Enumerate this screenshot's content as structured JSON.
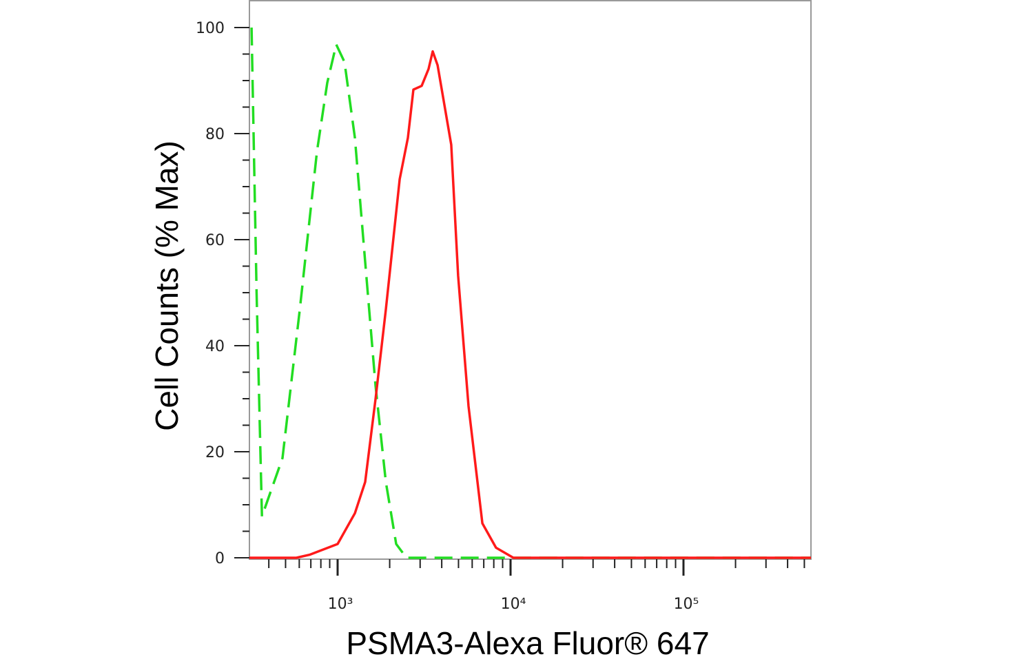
{
  "chart_data": {
    "type": "line",
    "x_label": "PSMA3-Alexa Fluor® 647",
    "y_label": "Cell Counts (% Max)",
    "xscale": "log",
    "xlim": [
      309,
      546000
    ],
    "ylim": [
      0,
      105
    ],
    "xticks": [
      {
        "value": 1000,
        "label": "10³"
      },
      {
        "value": 10000,
        "label": "10⁴"
      },
      {
        "value": 100000,
        "label": "10⁵"
      }
    ],
    "xminorticks": [
      400,
      500,
      600,
      700,
      800,
      900,
      2000,
      3000,
      4000,
      5000,
      6000,
      7000,
      8000,
      9000,
      20000,
      30000,
      40000,
      50000,
      60000,
      70000,
      80000,
      90000,
      200000,
      300000,
      400000,
      500000
    ],
    "yticks": [
      0,
      20,
      40,
      60,
      80,
      100
    ],
    "yminorticks": [
      5,
      10,
      15,
      25,
      30,
      35,
      45,
      50,
      55,
      65,
      70,
      75,
      85,
      90,
      95
    ],
    "series": [
      {
        "color": "#22dd22",
        "dash": true,
        "x": [
          318,
          340,
          365,
          480,
          604,
          759,
          871,
          982,
          1096,
          1259,
          1443,
          1656,
          1900,
          2181,
          2500,
          546000
        ],
        "values": [
          100,
          50,
          7.8,
          18.8,
          46.8,
          76.6,
          89.6,
          96.8,
          93.5,
          79.2,
          55.8,
          32.5,
          14.3,
          2.6,
          0,
          0
        ]
      },
      {
        "color": "#ff1a1a",
        "dash": false,
        "x": [
          309,
          577,
          693,
          1000,
          1259,
          1443,
          1656,
          1900,
          2285,
          2548,
          2742,
          3062,
          3357,
          3548,
          3784,
          4539,
          4977,
          5715,
          6871,
          8241,
          10380,
          546000
        ],
        "values": [
          0,
          0,
          0.6,
          2.6,
          8.4,
          14.3,
          29.9,
          46.8,
          71.4,
          79.2,
          88.3,
          89,
          92.2,
          95.5,
          92.9,
          77.9,
          53.2,
          28.6,
          6.5,
          1.9,
          0,
          0
        ]
      }
    ]
  }
}
